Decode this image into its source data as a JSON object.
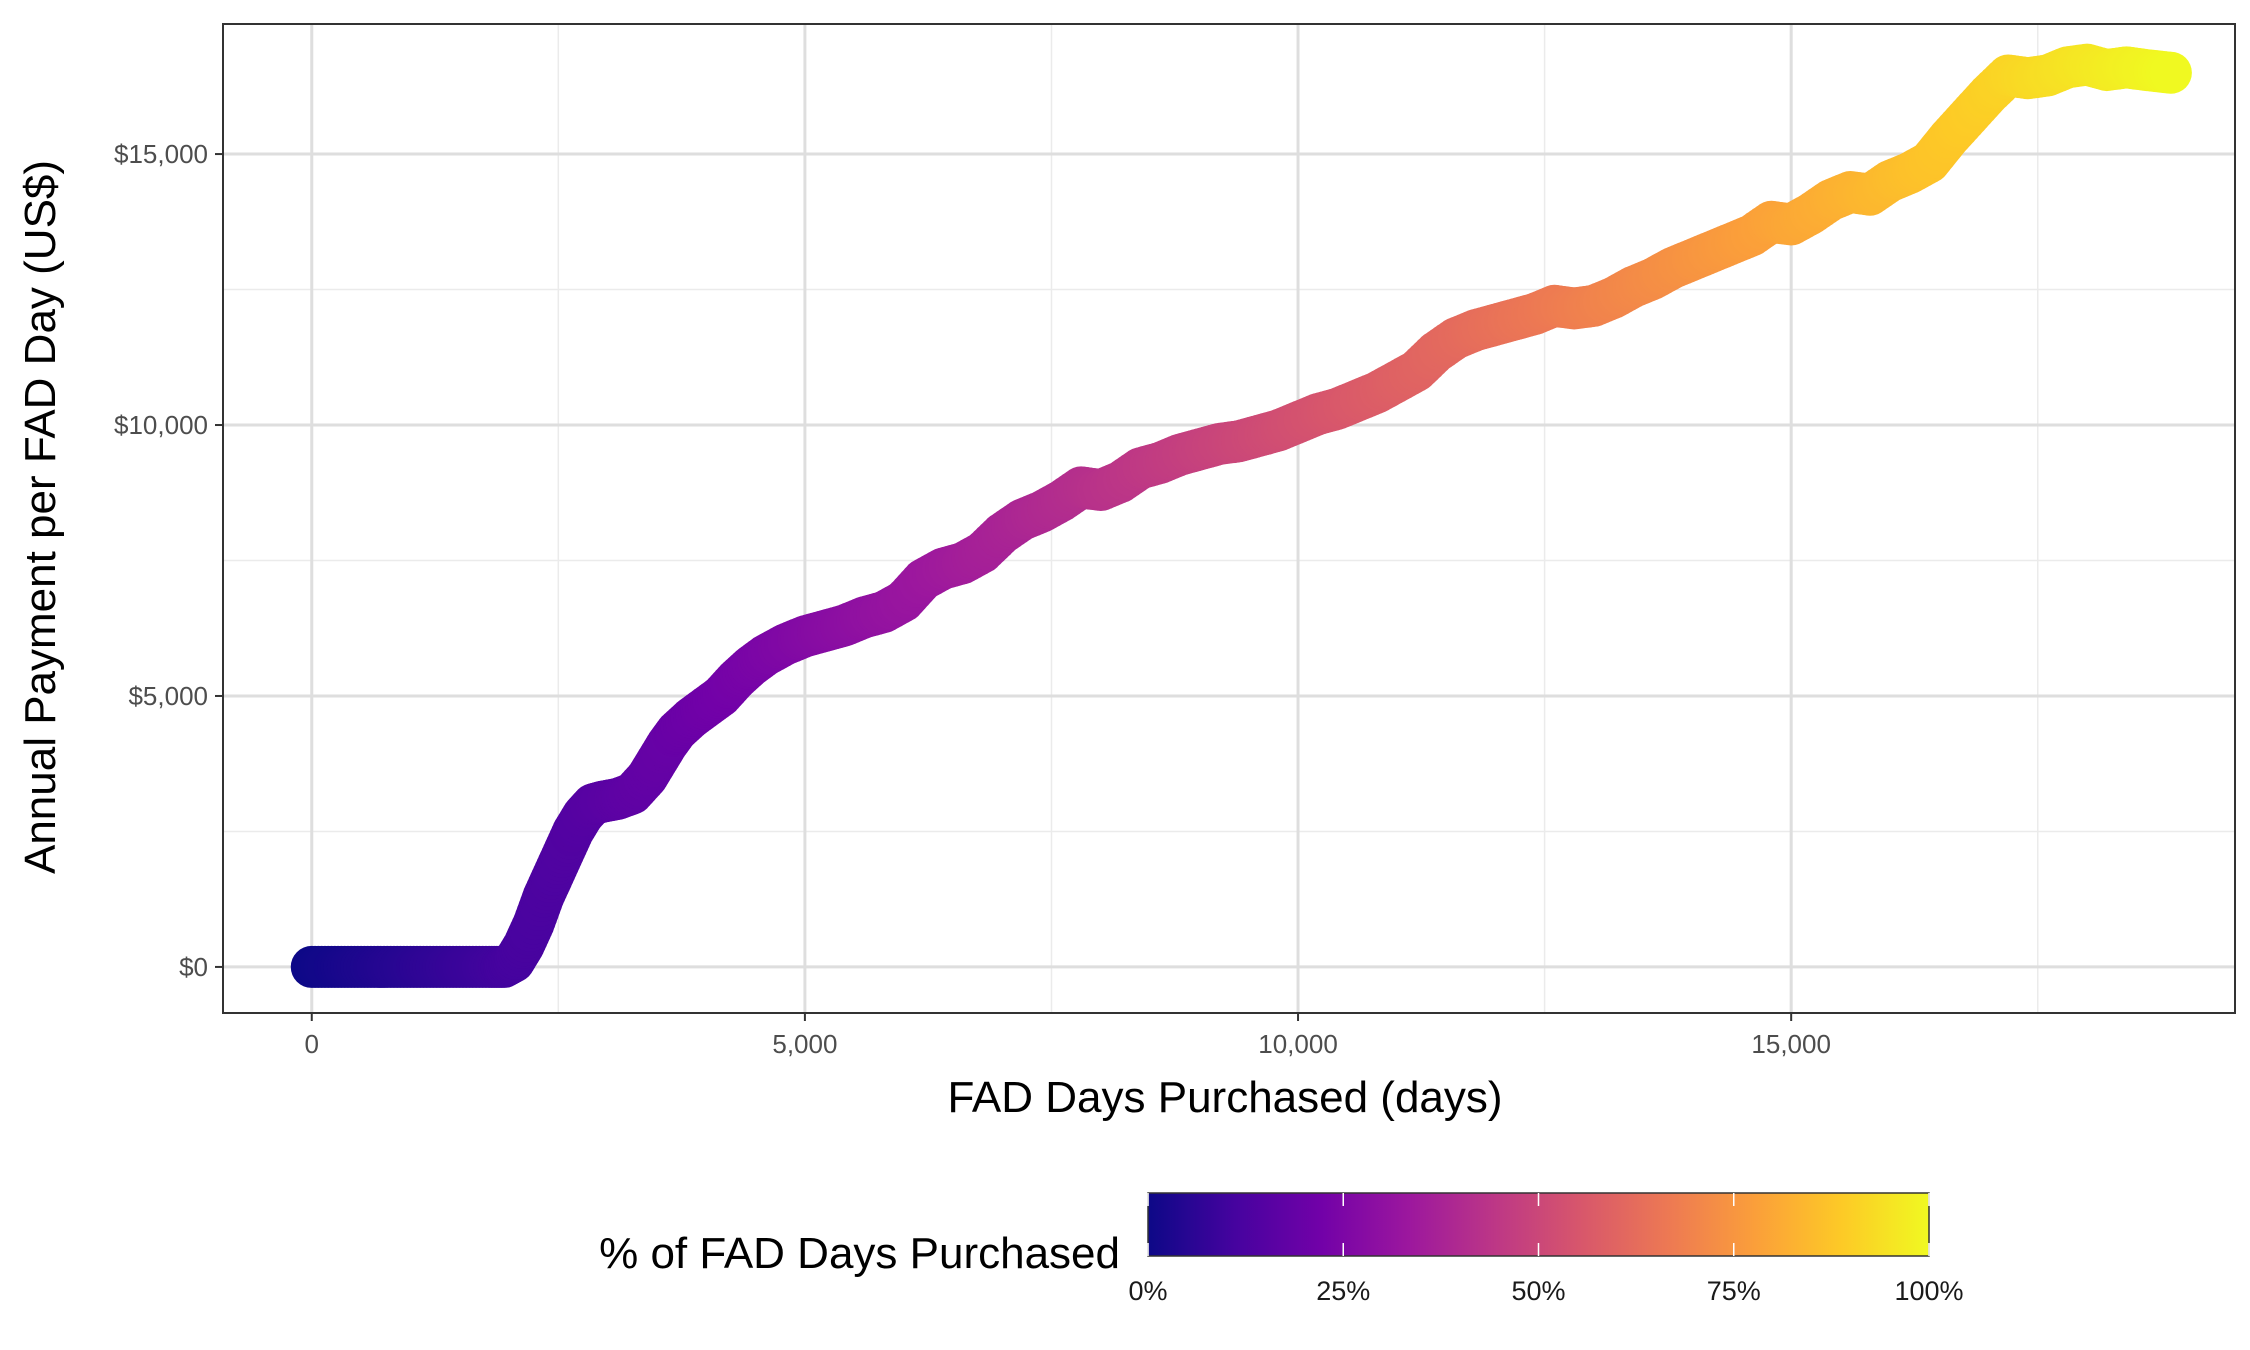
{
  "chart_data": {
    "type": "scatter",
    "title": "",
    "xlabel": "FAD Days Purchased (days)",
    "ylabel": "Annual Payment per FAD Day (US$)",
    "xlim": [
      -900,
      19500
    ],
    "ylim": [
      -850,
      17400
    ],
    "x_ticks": [
      0,
      5000,
      10000,
      15000
    ],
    "x_tick_labels": [
      "0",
      "5,000",
      "10,000",
      "15,000"
    ],
    "x_minor_ticks": [
      2500,
      7500,
      12500,
      17500
    ],
    "y_ticks": [
      0,
      5000,
      10000,
      15000
    ],
    "y_tick_labels": [
      "$0",
      "$5,000",
      "$10,000",
      "$15,000"
    ],
    "y_minor_ticks": [
      2500,
      7500,
      12500
    ],
    "grid": true,
    "series": [
      {
        "color_variable": "% of FAD Days Purchased",
        "x": [
          0,
          200,
          400,
          600,
          800,
          1000,
          1200,
          1400,
          1600,
          1800,
          1950,
          2050,
          2150,
          2250,
          2350,
          2450,
          2550,
          2650,
          2750,
          2850,
          2950,
          3100,
          3250,
          3400,
          3500,
          3600,
          3700,
          3850,
          4000,
          4150,
          4300,
          4450,
          4600,
          4800,
          5000,
          5200,
          5400,
          5600,
          5800,
          6000,
          6200,
          6400,
          6600,
          6800,
          7000,
          7200,
          7400,
          7600,
          7800,
          8000,
          8200,
          8400,
          8600,
          8800,
          9000,
          9200,
          9400,
          9600,
          9800,
          10000,
          10200,
          10400,
          10600,
          10800,
          11000,
          11200,
          11400,
          11600,
          11800,
          12000,
          12200,
          12400,
          12600,
          12800,
          13000,
          13200,
          13400,
          13600,
          13800,
          14000,
          14200,
          14400,
          14600,
          14800,
          15000,
          15200,
          15400,
          15600,
          15800,
          16000,
          16200,
          16400,
          16600,
          16800,
          17000,
          17200,
          17400,
          17600,
          17800,
          18000,
          18200,
          18400,
          18600,
          18850
        ],
        "y": [
          0,
          0,
          0,
          0,
          0,
          0,
          0,
          0,
          0,
          0,
          0,
          100,
          400,
          800,
          1300,
          1700,
          2100,
          2500,
          2800,
          3000,
          3050,
          3100,
          3200,
          3500,
          3800,
          4100,
          4350,
          4600,
          4800,
          5000,
          5300,
          5550,
          5750,
          5950,
          6100,
          6200,
          6300,
          6450,
          6550,
          6750,
          7150,
          7350,
          7450,
          7650,
          8000,
          8250,
          8400,
          8600,
          8850,
          8800,
          8950,
          9200,
          9300,
          9450,
          9550,
          9650,
          9700,
          9800,
          9900,
          10050,
          10200,
          10300,
          10450,
          10600,
          10800,
          11000,
          11350,
          11600,
          11750,
          11850,
          11950,
          12050,
          12200,
          12150,
          12200,
          12350,
          12550,
          12700,
          12900,
          13050,
          13200,
          13350,
          13500,
          13750,
          13700,
          13900,
          14150,
          14300,
          14250,
          14500,
          14650,
          14850,
          15300,
          15700,
          16100,
          16450,
          16400,
          16450,
          16600,
          16650,
          16550,
          16600,
          16550,
          16500
        ]
      }
    ],
    "color_scale": {
      "type": "continuous",
      "palette": "plasma",
      "colors": [
        "#0d0887",
        "#46039f",
        "#7201a8",
        "#9c179e",
        "#bd3786",
        "#d8576b",
        "#ed7953",
        "#fb9f3a",
        "#fdca26",
        "#f0f921"
      ],
      "title": "% of FAD Days Purchased",
      "tick_labels": [
        "0%",
        "25%",
        "50%",
        "75%",
        "100%"
      ],
      "tick_values": [
        0,
        0.25,
        0.5,
        0.75,
        1.0
      ]
    },
    "legend_position": "bottom"
  }
}
